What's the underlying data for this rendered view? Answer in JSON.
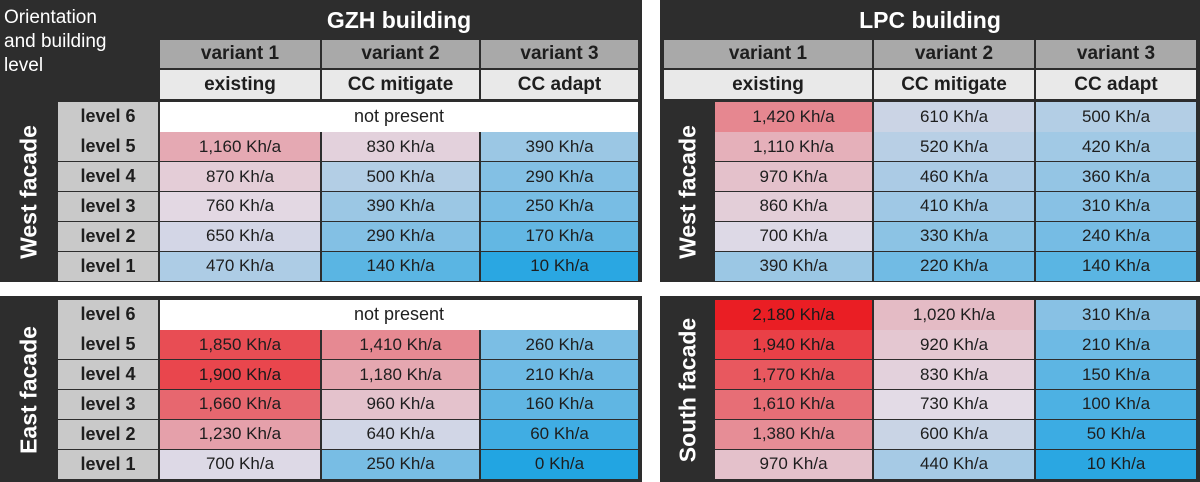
{
  "chart_data": {
    "type": "table",
    "orientation_header": [
      "Orientation",
      "and building",
      "level"
    ],
    "unit": "Kh/a",
    "buildings": [
      {
        "name": "GZH building",
        "variants": [
          {
            "name": "variant 1",
            "description": "existing"
          },
          {
            "name": "variant 2",
            "description": "CC mitigate"
          },
          {
            "name": "variant 3",
            "description": "CC adapt"
          }
        ],
        "facades": [
          {
            "name": "West facade",
            "rows": [
              {
                "level": "level 6",
                "not_present": "not present"
              },
              {
                "level": "level 5",
                "values": [
                  1160,
                  830,
                  390
                ],
                "labels": [
                  "1,160 Kh/a",
                  "830 Kh/a",
                  "390 Kh/a"
                ]
              },
              {
                "level": "level 4",
                "values": [
                  870,
                  500,
                  290
                ],
                "labels": [
                  "870 Kh/a",
                  "500 Kh/a",
                  "290 Kh/a"
                ]
              },
              {
                "level": "level 3",
                "values": [
                  760,
                  390,
                  250
                ],
                "labels": [
                  "760 Kh/a",
                  "390 Kh/a",
                  "250 Kh/a"
                ]
              },
              {
                "level": "level 2",
                "values": [
                  650,
                  290,
                  170
                ],
                "labels": [
                  "650 Kh/a",
                  "290 Kh/a",
                  "170 Kh/a"
                ]
              },
              {
                "level": "level 1",
                "values": [
                  470,
                  140,
                  10
                ],
                "labels": [
                  "470 Kh/a",
                  "140 Kh/a",
                  "10 Kh/a"
                ]
              }
            ]
          },
          {
            "name": "East facade",
            "rows": [
              {
                "level": "level 6",
                "not_present": "not present"
              },
              {
                "level": "level 5",
                "values": [
                  1850,
                  1410,
                  260
                ],
                "labels": [
                  "1,850 Kh/a",
                  "1,410 Kh/a",
                  "260 Kh/a"
                ]
              },
              {
                "level": "level 4",
                "values": [
                  1900,
                  1180,
                  210
                ],
                "labels": [
                  "1,900 Kh/a",
                  "1,180 Kh/a",
                  "210 Kh/a"
                ]
              },
              {
                "level": "level 3",
                "values": [
                  1660,
                  960,
                  160
                ],
                "labels": [
                  "1,660 Kh/a",
                  "960 Kh/a",
                  "160 Kh/a"
                ]
              },
              {
                "level": "level 2",
                "values": [
                  1230,
                  640,
                  60
                ],
                "labels": [
                  "1,230 Kh/a",
                  "640 Kh/a",
                  "60 Kh/a"
                ]
              },
              {
                "level": "level 1",
                "values": [
                  700,
                  250,
                  0
                ],
                "labels": [
                  "700 Kh/a",
                  "250 Kh/a",
                  "0 Kh/a"
                ]
              }
            ]
          }
        ]
      },
      {
        "name": "LPC building",
        "variants": [
          {
            "name": "variant 1",
            "description": "existing"
          },
          {
            "name": "variant 2",
            "description": "CC mitigate"
          },
          {
            "name": "variant 3",
            "description": "CC adapt"
          }
        ],
        "facades": [
          {
            "name": "West facade",
            "rows": [
              {
                "values": [
                  1420,
                  610,
                  500
                ],
                "labels": [
                  "1,420 Kh/a",
                  "610 Kh/a",
                  "500 Kh/a"
                ]
              },
              {
                "values": [
                  1110,
                  520,
                  420
                ],
                "labels": [
                  "1,110 Kh/a",
                  "520 Kh/a",
                  "420 Kh/a"
                ]
              },
              {
                "values": [
                  970,
                  460,
                  360
                ],
                "labels": [
                  "970 Kh/a",
                  "460 Kh/a",
                  "360 Kh/a"
                ]
              },
              {
                "values": [
                  860,
                  410,
                  310
                ],
                "labels": [
                  "860 Kh/a",
                  "410 Kh/a",
                  "310 Kh/a"
                ]
              },
              {
                "values": [
                  700,
                  330,
                  240
                ],
                "labels": [
                  "700 Kh/a",
                  "330 Kh/a",
                  "240 Kh/a"
                ]
              },
              {
                "values": [
                  390,
                  220,
                  140
                ],
                "labels": [
                  "390 Kh/a",
                  "220 Kh/a",
                  "140 Kh/a"
                ]
              }
            ]
          },
          {
            "name": "South facade",
            "rows": [
              {
                "values": [
                  2180,
                  1020,
                  310
                ],
                "labels": [
                  "2,180 Kh/a",
                  "1,020 Kh/a",
                  "310 Kh/a"
                ]
              },
              {
                "values": [
                  1940,
                  920,
                  210
                ],
                "labels": [
                  "1,940 Kh/a",
                  "920 Kh/a",
                  "210 Kh/a"
                ]
              },
              {
                "values": [
                  1770,
                  830,
                  150
                ],
                "labels": [
                  "1,770 Kh/a",
                  "830 Kh/a",
                  "150 Kh/a"
                ]
              },
              {
                "values": [
                  1610,
                  730,
                  100
                ],
                "labels": [
                  "1,610 Kh/a",
                  "730 Kh/a",
                  "100 Kh/a"
                ]
              },
              {
                "values": [
                  1380,
                  600,
                  50
                ],
                "labels": [
                  "1,380 Kh/a",
                  "600 Kh/a",
                  "50 Kh/a"
                ]
              },
              {
                "values": [
                  970,
                  440,
                  10
                ],
                "labels": [
                  "970 Kh/a",
                  "440 Kh/a",
                  "10 Kh/a"
                ]
              }
            ]
          }
        ]
      }
    ],
    "color_scale": {
      "low": "#22a5e2",
      "mid": "#e3dbe6",
      "high": "#ea1e24",
      "value_range": [
        0,
        2180
      ]
    },
    "grid": true
  }
}
